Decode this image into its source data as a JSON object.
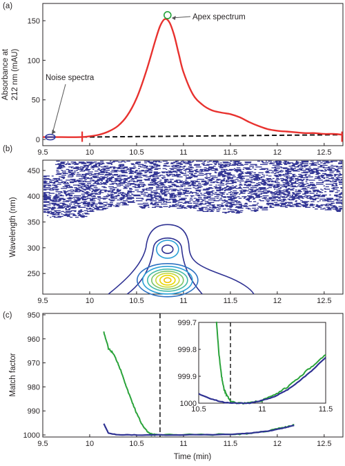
{
  "colors": {
    "chromatogram": "#e8312e",
    "baseline": "#111111",
    "apex_marker": "#22a33a",
    "noise_marker": "#2f3a9e",
    "contour_outer": "#2e3192",
    "contour_mid": "#2a9fd6",
    "contour_inner": "#e8e100",
    "match_green": "#2aa33a",
    "match_blue": "#2e3192"
  },
  "chart_data": [
    {
      "panel": "(a)",
      "type": "line",
      "ylabel": [
        "Absorbance at",
        "212 nm (mAU)"
      ],
      "xlim": [
        9.5,
        12.7
      ],
      "ylim": [
        0,
        160
      ],
      "xticks": [
        "9.5",
        "10",
        "10.5",
        "11",
        "11.5",
        "12",
        "12.5"
      ],
      "yticks": [
        "0",
        "50",
        "100",
        "150"
      ],
      "annotations": {
        "apex": "Apex spectrum",
        "noise": "Noise spectra"
      },
      "series": [
        {
          "role": "chromatogram",
          "x": [
            9.5,
            9.7,
            9.9,
            10.0,
            10.1,
            10.2,
            10.3,
            10.4,
            10.5,
            10.6,
            10.7,
            10.75,
            10.8,
            10.85,
            10.9,
            10.95,
            11.0,
            11.1,
            11.2,
            11.3,
            11.4,
            11.5,
            11.6,
            11.7,
            11.8,
            11.9,
            12.0,
            12.1,
            12.2,
            12.3,
            12.4,
            12.5,
            12.6,
            12.7
          ],
          "y": [
            3,
            3,
            3,
            4,
            6,
            10,
            17,
            30,
            52,
            85,
            125,
            143,
            152,
            148,
            132,
            108,
            85,
            57,
            44,
            37,
            34,
            32,
            28,
            22,
            17,
            13,
            11,
            10,
            9,
            8,
            8,
            7,
            7,
            6
          ]
        },
        {
          "role": "baseline",
          "x": [
            9.92,
            12.7
          ],
          "y": [
            3,
            6
          ]
        }
      ],
      "markers": {
        "apex": [
          10.83,
          157
        ],
        "noise": [
          9.58,
          3
        ]
      },
      "integration_limits": [
        9.92,
        12.69
      ]
    },
    {
      "panel": "(b)",
      "type": "heatmap",
      "ylabel": "Wavelength (nm)",
      "xlim": [
        9.5,
        12.7
      ],
      "ylim": [
        210,
        470
      ],
      "xticks": [
        "9.5",
        "10",
        "10.5",
        "11",
        "11.5",
        "12",
        "12.5"
      ],
      "yticks": [
        "250",
        "300",
        "350",
        "400",
        "450"
      ],
      "noise_band_nm": [
        360,
        465
      ],
      "contour_peak": {
        "time": 10.83,
        "wavelength": 237
      }
    },
    {
      "panel": "(c)",
      "type": "line",
      "xlabel": "Time (min)",
      "ylabel": "Match factor",
      "xlim": [
        9.5,
        12.7
      ],
      "ylim": [
        950,
        1000
      ],
      "xticks": [
        "9.5",
        "10",
        "10.5",
        "11",
        "11.5",
        "12",
        "12.5"
      ],
      "yticks": [
        "950",
        "960",
        "970",
        "980",
        "990",
        "1000"
      ],
      "marker_time": 10.75,
      "series": [
        {
          "role": "green",
          "x": [
            10.15,
            10.2,
            10.25,
            10.3,
            10.35,
            10.4,
            10.45,
            10.5,
            10.55,
            10.6,
            10.65,
            10.7,
            11.0,
            11.5,
            11.7,
            11.9,
            12.0,
            12.1,
            12.18
          ],
          "y": [
            957,
            964,
            966,
            970,
            975,
            981,
            986,
            991,
            995,
            998,
            999.7,
            1000,
            1000,
            999.8,
            999.4,
            998.3,
            997.5,
            996.6,
            995.8
          ]
        },
        {
          "role": "blue",
          "x": [
            10.15,
            10.2,
            10.3,
            10.5,
            11.0,
            11.5,
            11.7,
            11.9,
            12.0,
            12.1,
            12.18
          ],
          "y": [
            995.3,
            999.3,
            999.9,
            1000,
            1000,
            999.8,
            999.3,
            998.4,
            997.7,
            996.8,
            996.0
          ]
        }
      ],
      "inset": {
        "xlim": [
          10.5,
          11.5
        ],
        "ylim": [
          999.7,
          1000
        ],
        "xticks": [
          "10.5",
          "11",
          "11.5"
        ],
        "yticks": [
          "999.7",
          "999.8",
          "999.9",
          "1000"
        ],
        "series": [
          {
            "role": "green",
            "x": [
              10.64,
              10.66,
              10.68,
              10.7,
              10.72,
              10.75,
              10.8,
              10.9,
              11.0,
              11.1,
              11.2,
              11.3,
              11.4,
              11.5
            ],
            "y": [
              999.7,
              999.82,
              999.9,
              999.95,
              999.97,
              999.99,
              1000,
              1000,
              999.99,
              999.97,
              999.94,
              999.9,
              999.86,
              999.82
            ]
          },
          {
            "role": "blue",
            "x": [
              10.5,
              10.6,
              10.7,
              10.8,
              10.9,
              11.0,
              11.1,
              11.2,
              11.3,
              11.4,
              11.5
            ],
            "y": [
              999.965,
              999.985,
              999.997,
              1000,
              1000,
              999.99,
              999.975,
              999.95,
              999.915,
              999.875,
              999.83
            ]
          }
        ]
      }
    }
  ]
}
